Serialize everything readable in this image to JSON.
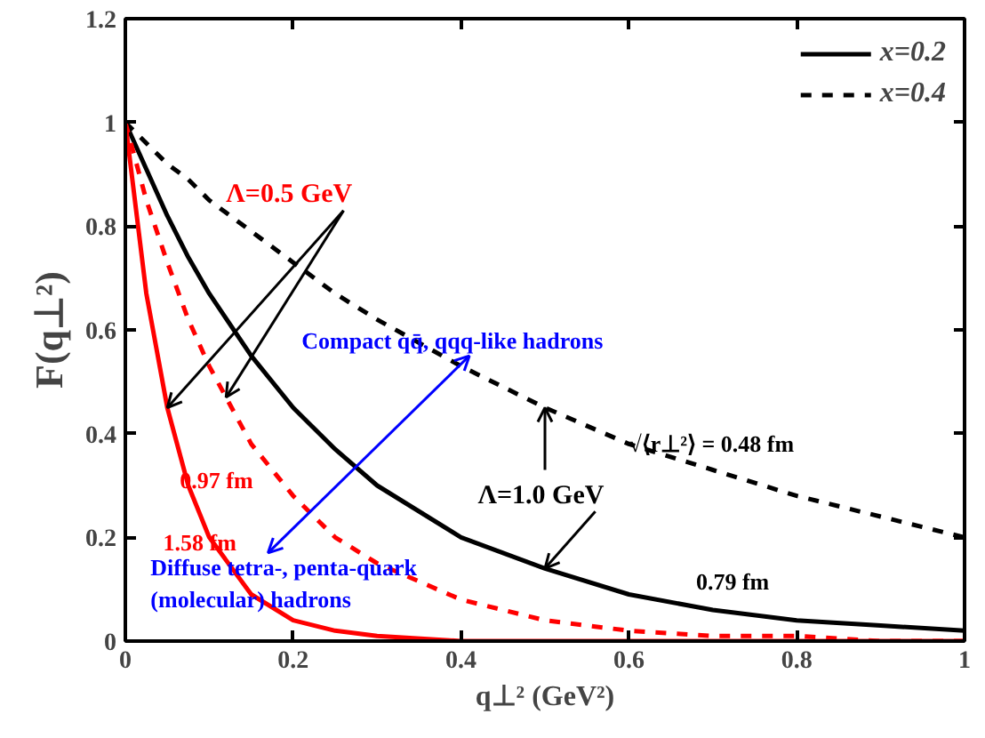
{
  "chart_data": {
    "type": "line",
    "xlabel": "q⊥² (GeV²)",
    "ylabel": "F(q⊥²)",
    "x": [
      0,
      0.025,
      0.05,
      0.075,
      0.1,
      0.15,
      0.2,
      0.25,
      0.3,
      0.4,
      0.5,
      0.6,
      0.7,
      0.8,
      0.9,
      1
    ],
    "xlim": [
      0,
      1
    ],
    "ylim": [
      0,
      1.2
    ],
    "xticks": [
      0,
      0.2,
      0.4,
      0.6,
      0.8,
      1
    ],
    "yticks": [
      0,
      0.2,
      0.4,
      0.6,
      0.8,
      1,
      1.2
    ],
    "grid": false,
    "legend": "top right",
    "marker": "none",
    "series": [
      {
        "name": "x=0.2",
        "color": "#000000",
        "line_style": "solid",
        "values": [
          1,
          0.91,
          0.82,
          0.74,
          0.67,
          0.55,
          0.45,
          0.37,
          0.3,
          0.2,
          0.14,
          0.09,
          0.06,
          0.04,
          0.03,
          0.02
        ]
      },
      {
        "name": "x=0.4",
        "color": "#000000",
        "line_style": "dashed",
        "values": [
          1,
          0.96,
          0.92,
          0.89,
          0.85,
          0.79,
          0.73,
          0.67,
          0.62,
          0.53,
          0.45,
          0.38,
          0.33,
          0.28,
          0.24,
          0.2
        ]
      },
      {
        "color": "#ff0000",
        "line_style": "solid",
        "values": [
          1,
          0.67,
          0.45,
          0.3,
          0.2,
          0.09,
          0.04,
          0.02,
          0.01,
          0,
          0,
          0,
          0,
          0,
          0,
          0
        ]
      },
      {
        "color": "#ff0000",
        "line_style": "dashed",
        "values": [
          1,
          0.85,
          0.73,
          0.62,
          0.53,
          0.38,
          0.28,
          0.2,
          0.15,
          0.08,
          0.04,
          0.02,
          0.01,
          0.01,
          0,
          0
        ]
      }
    ],
    "annotations": [
      {
        "text": "Λ=0.5 GeV",
        "x": 0.05,
        "y": 0.45
      },
      {
        "text": "Λ=1.0 GeV",
        "x": 0.5,
        "y": 0.14
      },
      "0.97 fm",
      "1.58 fm",
      "0.79 fm",
      "√⟨r⊥²⟩ = 0.48 fm",
      "Compact qq̄, qqq-like hadrons",
      "Diffuse tetra-, penta-quark\n(molecular) hadrons"
    ]
  }
}
